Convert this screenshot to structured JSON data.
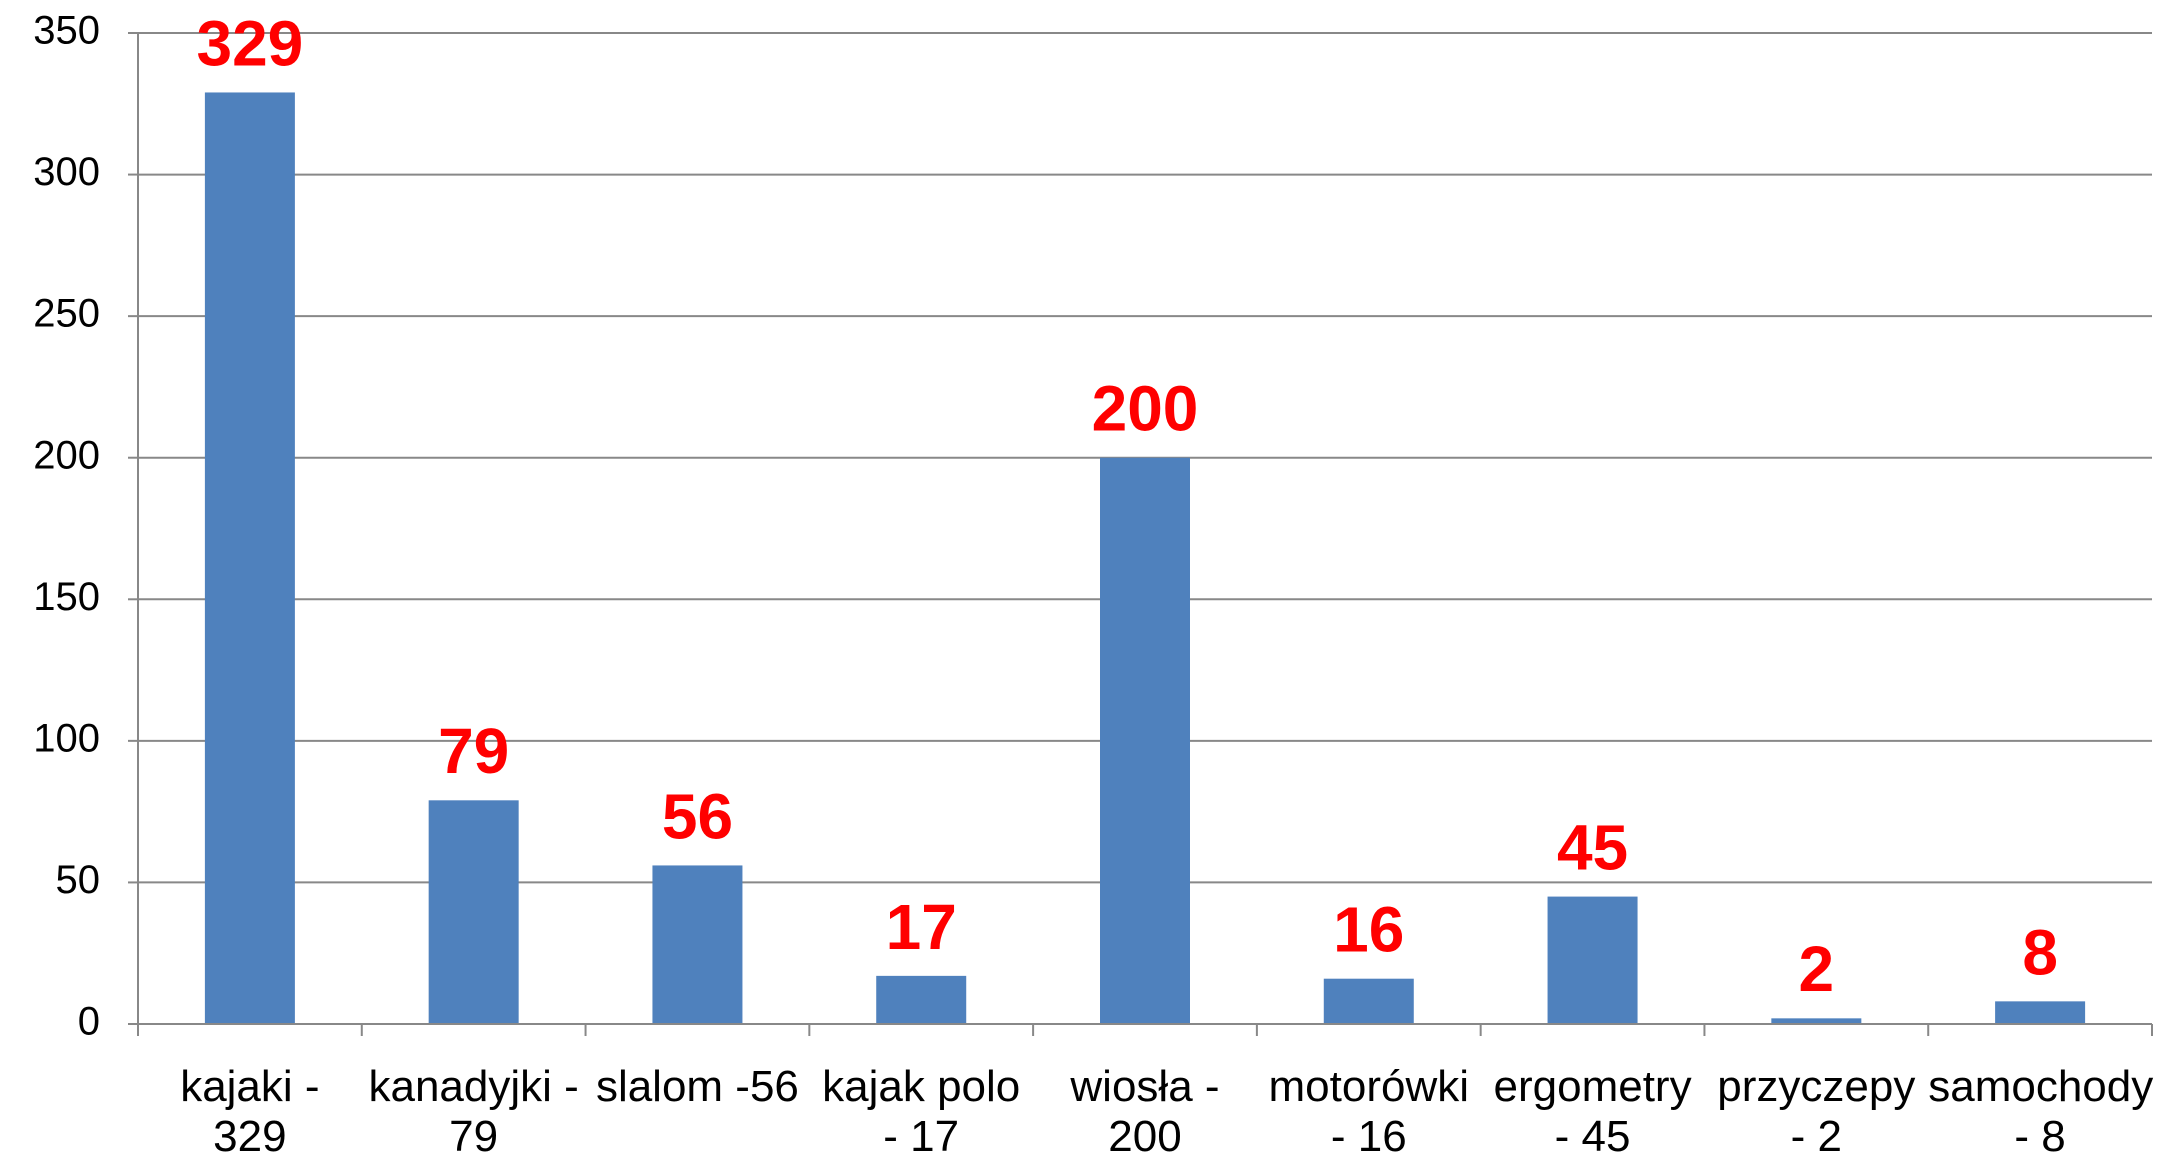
{
  "chart_data": {
    "type": "bar",
    "categories": [
      "kajaki - 329",
      "kanadyjki - 79",
      "slalom -56",
      "kajak polo - 17",
      "wiosła - 200",
      "motorówki - 16",
      "ergometry - 45",
      "przyczepy - 2",
      "samochody - 8"
    ],
    "values": [
      329,
      79,
      56,
      17,
      200,
      16,
      45,
      2,
      8
    ],
    "color": "#4f81bd",
    "value_label_color": "#ff0000",
    "ylim": [
      0,
      350
    ],
    "yticks": [
      0,
      50,
      100,
      150,
      200,
      250,
      300,
      350
    ],
    "grid": true
  }
}
